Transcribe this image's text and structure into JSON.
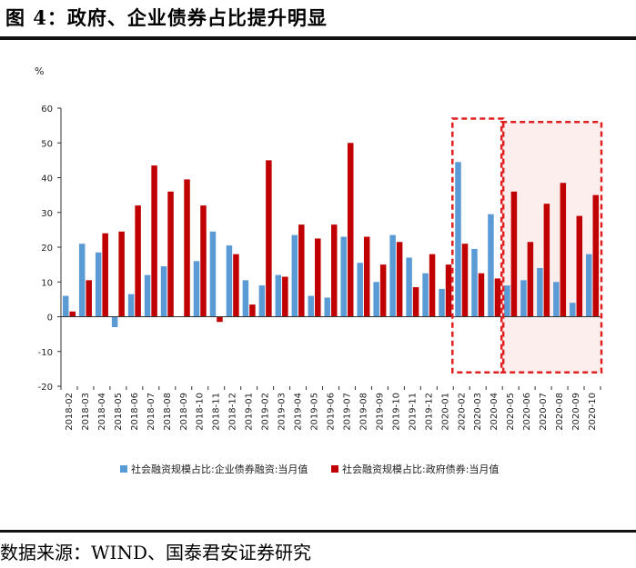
{
  "title": "图 4：政府、企业债券占比提升明显",
  "source": "数据来源：WIND、国泰君安证券研究",
  "colors": {
    "corporate": "#5b9bd5",
    "government": "#c00000",
    "highlight": "#e02020",
    "highlight_fill": "#fdeeee"
  },
  "chart_data": {
    "type": "bar",
    "ylabel": "%",
    "ylim": [
      -20,
      60
    ],
    "yticks": [
      -20,
      -10,
      0,
      10,
      20,
      30,
      40,
      50,
      60
    ],
    "categories": [
      "2018-02",
      "2018-03",
      "2018-04",
      "2018-05",
      "2018-06",
      "2018-07",
      "2018-08",
      "2018-09",
      "2018-10",
      "2018-11",
      "2018-12",
      "2019-01",
      "2019-02",
      "2019-03",
      "2019-04",
      "2019-05",
      "2019-06",
      "2019-07",
      "2019-08",
      "2019-09",
      "2019-10",
      "2019-11",
      "2019-12",
      "2020-01",
      "2020-02",
      "2020-03",
      "2020-04",
      "2020-05",
      "2020-06",
      "2020-07",
      "2020-08",
      "2020-09",
      "2020-10"
    ],
    "series": [
      {
        "name": "社会融资规模占比:企业债券融资:当月值",
        "values": [
          6,
          21,
          18.5,
          -3,
          6.5,
          12,
          14.5,
          0,
          16,
          24.5,
          20.5,
          10.5,
          9,
          12,
          23.5,
          6,
          5.5,
          23,
          15.5,
          10,
          23.5,
          17,
          12.5,
          8,
          44.5,
          19.5,
          29.5,
          9,
          10.5,
          14,
          10,
          4,
          18
        ]
      },
      {
        "name": "社会融资规模占比:政府债券:当月值",
        "values": [
          1.5,
          10.5,
          24,
          24.5,
          32,
          43.5,
          36,
          39.5,
          32,
          -1.5,
          18,
          3.5,
          45,
          11.5,
          26.5,
          22.5,
          26.5,
          50,
          23,
          15,
          21.5,
          8.5,
          18,
          15,
          21,
          12.5,
          11,
          36,
          21.5,
          32.5,
          38.5,
          29,
          35
        ]
      }
    ],
    "highlight_ranges": [
      {
        "from": "2020-02",
        "to": "2020-04",
        "ymin": -16,
        "ymax": 57
      },
      {
        "from": "2020-05",
        "to": "2020-10",
        "ymin": -16,
        "ymax": 56
      }
    ],
    "legend_position": "bottom"
  }
}
